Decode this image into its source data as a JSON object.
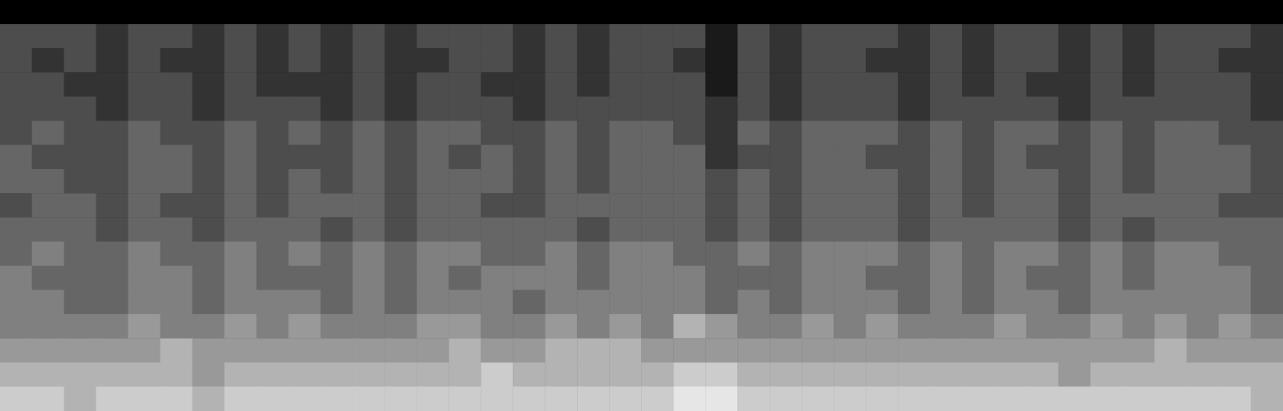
{
  "chart_data": {
    "type": "heatmap",
    "tick_labels": false,
    "grid": false,
    "clim": [
      0,
      10
    ],
    "colors": [
      "#000000",
      "#ffffff"
    ],
    "cells": [
      [
        0,
        0,
        0,
        0,
        0,
        0,
        0,
        0,
        0,
        0,
        0,
        0,
        0,
        0,
        0,
        0,
        0,
        0,
        0,
        0,
        0,
        0,
        0,
        0,
        0,
        0,
        0,
        0,
        0,
        0,
        0,
        0,
        0,
        0,
        0,
        0,
        0,
        0,
        0,
        0
      ],
      [
        3,
        3,
        3,
        2,
        3,
        3,
        2,
        3,
        2,
        3,
        2,
        3,
        2,
        3,
        3,
        3,
        2,
        3,
        2,
        3,
        3,
        3,
        1,
        3,
        2,
        3,
        3,
        3,
        2,
        3,
        2,
        3,
        3,
        2,
        3,
        2,
        3,
        3,
        3,
        2
      ],
      [
        3,
        2,
        3,
        2,
        3,
        2,
        2,
        3,
        2,
        3,
        2,
        3,
        2,
        2,
        3,
        3,
        2,
        3,
        2,
        3,
        3,
        2,
        1,
        3,
        2,
        3,
        3,
        2,
        2,
        3,
        2,
        3,
        3,
        2,
        3,
        2,
        3,
        3,
        2,
        2
      ],
      [
        3,
        3,
        2,
        2,
        3,
        3,
        2,
        3,
        2,
        2,
        2,
        3,
        2,
        3,
        3,
        2,
        2,
        3,
        2,
        3,
        3,
        3,
        1,
        3,
        2,
        3,
        3,
        3,
        2,
        3,
        2,
        3,
        2,
        2,
        3,
        2,
        3,
        3,
        3,
        2
      ],
      [
        3,
        3,
        3,
        2,
        3,
        3,
        2,
        3,
        3,
        3,
        2,
        3,
        2,
        3,
        3,
        3,
        2,
        3,
        3,
        3,
        3,
        3,
        2,
        3,
        2,
        3,
        3,
        3,
        2,
        3,
        3,
        3,
        3,
        2,
        3,
        3,
        3,
        3,
        3,
        2
      ],
      [
        3,
        4,
        3,
        3,
        4,
        3,
        3,
        4,
        3,
        4,
        3,
        4,
        3,
        4,
        4,
        3,
        3,
        4,
        3,
        4,
        4,
        3,
        2,
        4,
        3,
        4,
        4,
        4,
        3,
        4,
        3,
        4,
        4,
        3,
        4,
        3,
        4,
        4,
        3,
        3
      ],
      [
        4,
        3,
        3,
        3,
        4,
        4,
        3,
        4,
        3,
        3,
        3,
        4,
        3,
        4,
        3,
        4,
        3,
        4,
        3,
        4,
        4,
        4,
        2,
        3,
        3,
        4,
        4,
        3,
        3,
        4,
        3,
        4,
        3,
        3,
        4,
        3,
        4,
        4,
        4,
        3
      ],
      [
        4,
        4,
        3,
        3,
        4,
        4,
        3,
        4,
        3,
        4,
        3,
        4,
        3,
        4,
        4,
        4,
        3,
        4,
        3,
        4,
        4,
        4,
        3,
        4,
        3,
        4,
        4,
        4,
        3,
        4,
        3,
        4,
        4,
        3,
        4,
        3,
        4,
        4,
        4,
        3
      ],
      [
        3,
        4,
        4,
        3,
        4,
        3,
        3,
        4,
        3,
        4,
        4,
        4,
        3,
        4,
        4,
        3,
        3,
        4,
        4,
        4,
        4,
        4,
        3,
        4,
        3,
        4,
        4,
        4,
        3,
        4,
        3,
        4,
        4,
        3,
        4,
        4,
        4,
        4,
        3,
        3
      ],
      [
        4,
        4,
        4,
        3,
        4,
        4,
        3,
        4,
        4,
        4,
        3,
        4,
        3,
        4,
        4,
        4,
        4,
        4,
        3,
        4,
        4,
        4,
        3,
        4,
        3,
        4,
        4,
        4,
        3,
        4,
        4,
        4,
        4,
        3,
        4,
        3,
        4,
        4,
        4,
        4
      ],
      [
        4,
        5,
        4,
        4,
        5,
        4,
        4,
        5,
        4,
        5,
        4,
        5,
        4,
        5,
        5,
        4,
        4,
        5,
        4,
        5,
        5,
        4,
        4,
        5,
        4,
        5,
        5,
        5,
        4,
        5,
        4,
        5,
        5,
        4,
        5,
        4,
        5,
        5,
        4,
        4
      ],
      [
        5,
        4,
        4,
        4,
        5,
        5,
        4,
        5,
        4,
        4,
        4,
        5,
        4,
        5,
        4,
        5,
        5,
        5,
        4,
        5,
        5,
        5,
        4,
        4,
        4,
        5,
        5,
        4,
        4,
        5,
        4,
        5,
        4,
        4,
        5,
        4,
        5,
        5,
        5,
        4
      ],
      [
        5,
        5,
        4,
        4,
        5,
        5,
        4,
        5,
        5,
        5,
        4,
        5,
        4,
        5,
        5,
        5,
        4,
        5,
        5,
        5,
        5,
        5,
        4,
        5,
        4,
        5,
        5,
        5,
        4,
        5,
        4,
        5,
        5,
        4,
        5,
        5,
        5,
        5,
        5,
        4
      ],
      [
        5,
        5,
        5,
        5,
        6,
        5,
        5,
        6,
        5,
        6,
        5,
        5,
        5,
        6,
        6,
        5,
        5,
        6,
        5,
        6,
        5,
        7,
        6,
        5,
        5,
        6,
        5,
        6,
        5,
        5,
        5,
        6,
        5,
        5,
        6,
        5,
        6,
        5,
        6,
        5
      ],
      [
        6,
        6,
        6,
        6,
        6,
        7,
        6,
        6,
        6,
        6,
        6,
        6,
        6,
        6,
        7,
        6,
        6,
        7,
        7,
        7,
        6,
        6,
        6,
        6,
        6,
        6,
        6,
        6,
        6,
        6,
        6,
        6,
        6,
        6,
        6,
        6,
        7,
        6,
        6,
        6
      ],
      [
        7,
        7,
        7,
        7,
        7,
        7,
        6,
        7,
        7,
        7,
        7,
        7,
        7,
        7,
        7,
        8,
        7,
        7,
        7,
        7,
        7,
        8,
        8,
        7,
        7,
        7,
        7,
        7,
        7,
        7,
        7,
        7,
        7,
        6,
        7,
        7,
        7,
        7,
        7,
        7
      ],
      [
        8,
        8,
        7,
        8,
        8,
        8,
        7,
        8,
        8,
        8,
        8,
        8,
        8,
        8,
        8,
        8,
        8,
        8,
        8,
        8,
        8,
        9,
        9,
        8,
        8,
        8,
        8,
        8,
        8,
        8,
        8,
        8,
        8,
        8,
        8,
        8,
        8,
        8,
        8,
        7
      ]
    ]
  }
}
